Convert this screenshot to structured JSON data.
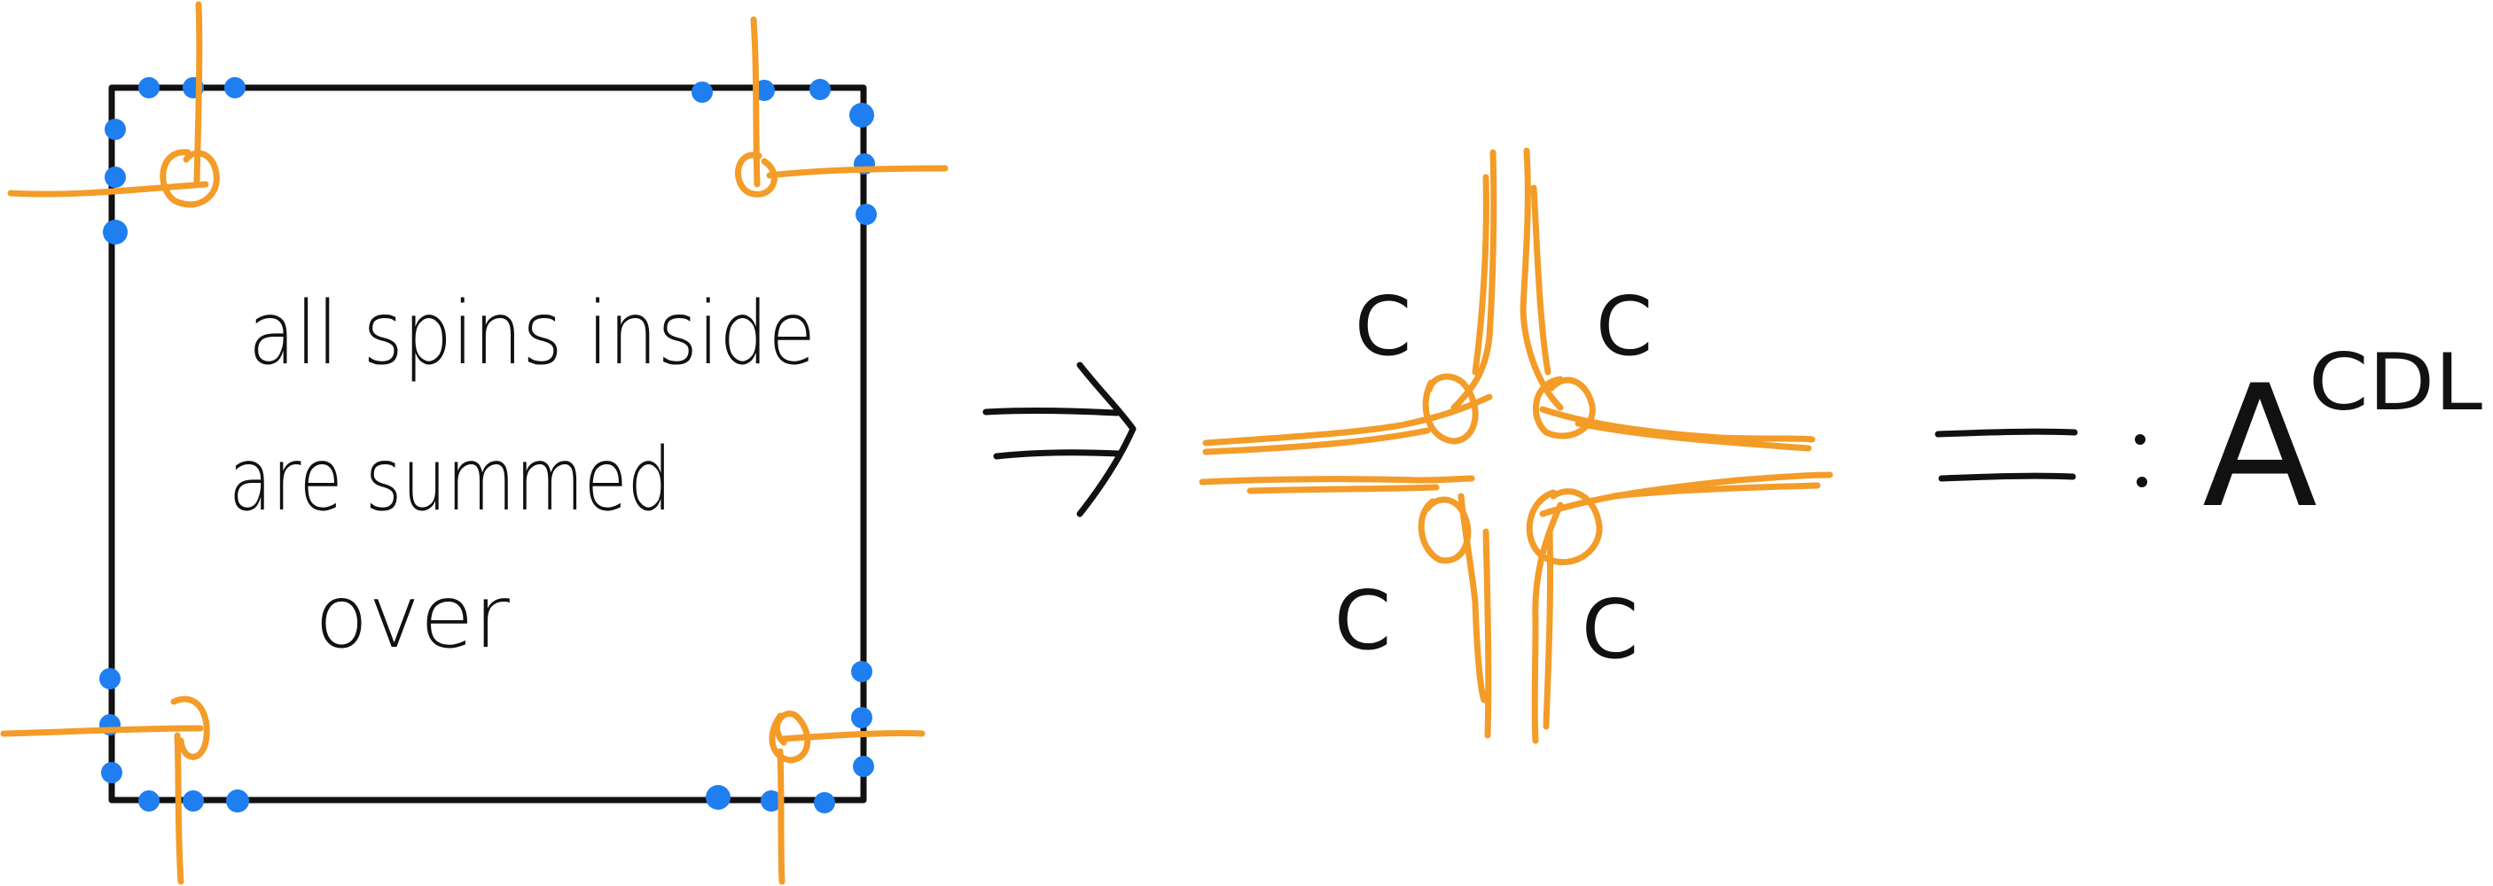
{
  "colors": {
    "ink": "#111111",
    "leg": "#f39c28",
    "dot": "#1f7ef0"
  },
  "left_panel": {
    "note_line_1": "all spins inside",
    "note_line_2": "are summed",
    "note_line_3": "over"
  },
  "arrow": {
    "symbol": "⇒"
  },
  "middle": {
    "corner_label_top_left": "C",
    "corner_label_top_right": "C",
    "corner_label_bottom_left": "C",
    "corner_label_bottom_right": "C"
  },
  "result": {
    "definition_symbol": "=:",
    "tensor_symbol": "A",
    "tensor_superscript": "CDL"
  }
}
